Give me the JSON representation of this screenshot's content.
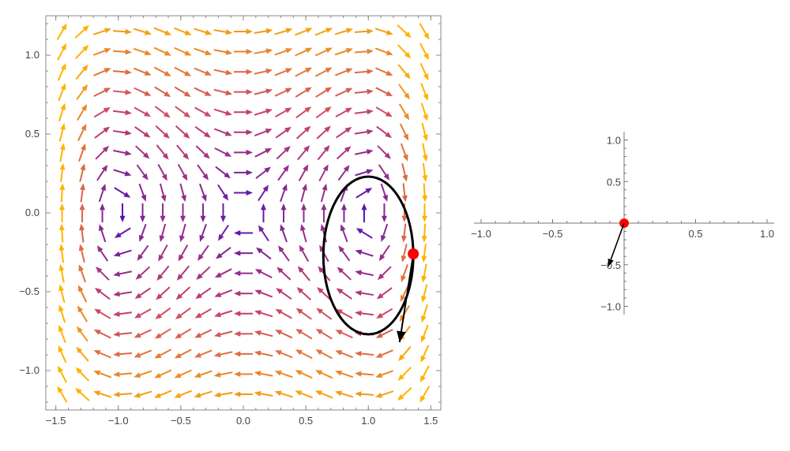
{
  "chart_data": [
    {
      "type": "vector-field",
      "xlim": [
        -1.58,
        1.58
      ],
      "ylim": [
        -1.25,
        1.25
      ],
      "frame": true,
      "x_ticks": [
        -1.5,
        -1.0,
        -0.5,
        0.0,
        0.5,
        1.0,
        1.5
      ],
      "x_tick_labels": [
        "-1.5",
        "-1.0",
        "-0.5",
        "0.0",
        "0.5",
        "1.0",
        "1.5"
      ],
      "y_ticks": [
        -1.0,
        -0.5,
        0.0,
        0.5,
        1.0
      ],
      "y_tick_labels": [
        "-1.0",
        "-0.5",
        "0.0",
        "0.5",
        "1.0"
      ],
      "color_scale": {
        "low": "#4a10b8",
        "mid": "#c8406e",
        "high": "#ffb300"
      },
      "orbit": {
        "center": [
          1.0,
          -0.27
        ],
        "radii": [
          0.36,
          0.5
        ],
        "color": "#000000"
      },
      "point": {
        "x": 1.36,
        "y": -0.26,
        "color": "#ff0000"
      },
      "velocity_arrow": {
        "from": [
          1.36,
          -0.26
        ],
        "to": [
          1.25,
          -0.82
        ],
        "color": "#000000"
      }
    },
    {
      "type": "vector",
      "xlim": [
        -1.05,
        1.05
      ],
      "ylim": [
        -1.1,
        1.1
      ],
      "x_ticks": [
        -1.0,
        -0.5,
        0.5,
        1.0
      ],
      "x_tick_labels": [
        "-1.0",
        "-0.5",
        "0.5",
        "1.0"
      ],
      "y_ticks": [
        -1.0,
        -0.5,
        0.5,
        1.0
      ],
      "y_tick_labels": [
        "-1.0",
        "-0.5",
        "0.5",
        "1.0"
      ],
      "point": {
        "x": 0,
        "y": 0,
        "color": "#ff0000"
      },
      "arrow": {
        "from": [
          0,
          0
        ],
        "to": [
          -0.11,
          -0.52
        ],
        "color": "#000000"
      }
    }
  ]
}
